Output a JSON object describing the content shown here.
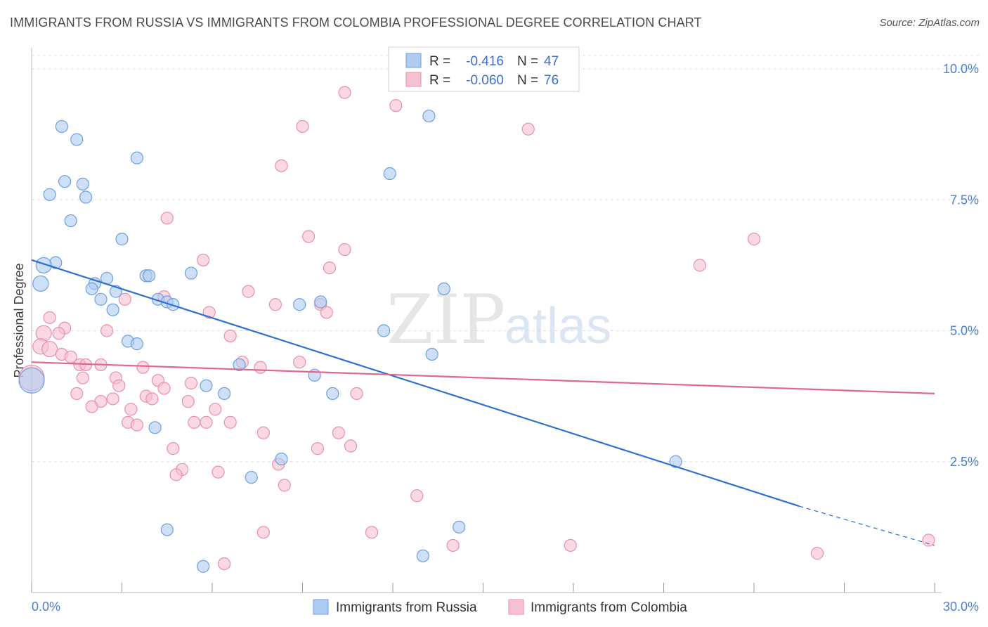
{
  "title": "IMMIGRANTS FROM RUSSIA VS IMMIGRANTS FROM COLOMBIA PROFESSIONAL DEGREE CORRELATION CHART",
  "source": "Source: ZipAtlas.com",
  "watermark": {
    "zip": "ZIP",
    "atlas": "atlas"
  },
  "colors": {
    "russia_fill": "#aecbf2",
    "russia_stroke": "#6f9fdc",
    "russia_line": "#2f6fcf",
    "colombia_fill": "#f7c0d1",
    "colombia_stroke": "#e88fac",
    "colombia_line": "#e0678f",
    "tick_text": "#4a7fd0",
    "grid": "#dddddd"
  },
  "stats": {
    "russia": {
      "r_label": "R =",
      "r_value": "-0.416",
      "n_label": "N =",
      "n_value": "47"
    },
    "colombia": {
      "r_label": "R =",
      "r_value": "-0.060",
      "n_label": "N =",
      "n_value": "76"
    }
  },
  "chart_data": {
    "type": "scatter",
    "title": "IMMIGRANTS FROM RUSSIA VS IMMIGRANTS FROM COLOMBIA PROFESSIONAL DEGREE CORRELATION CHART",
    "xlabel": "",
    "ylabel": "Professional Degree",
    "xlim": [
      0,
      30
    ],
    "ylim": [
      0,
      10.5
    ],
    "x_tick_labels": [
      "0.0%",
      "30.0%"
    ],
    "y_ticks": [
      {
        "value": 2.5,
        "label": "2.5%"
      },
      {
        "value": 5.0,
        "label": "5.0%"
      },
      {
        "value": 7.5,
        "label": "7.5%"
      },
      {
        "value": 10.0,
        "label": "10.0%"
      }
    ],
    "legend": [
      "Immigrants from Russia",
      "Immigrants from Colombia"
    ],
    "series": [
      {
        "name": "Immigrants from Russia",
        "trend": {
          "x0": 0,
          "y0": 6.35,
          "x1": 25.5,
          "y1": 1.65,
          "dash_to_x": 30,
          "dash_to_y": 0.9
        },
        "points": [
          [
            1.0,
            8.9
          ],
          [
            1.5,
            8.65
          ],
          [
            3.5,
            8.3
          ],
          [
            1.1,
            7.85
          ],
          [
            1.7,
            7.8
          ],
          [
            0.6,
            7.6
          ],
          [
            1.8,
            7.55
          ],
          [
            1.3,
            7.1
          ],
          [
            3.0,
            6.75
          ],
          [
            0.8,
            6.3
          ],
          [
            0.4,
            6.25
          ],
          [
            5.3,
            6.1
          ],
          [
            2.5,
            6.0
          ],
          [
            3.8,
            6.05
          ],
          [
            3.9,
            6.05
          ],
          [
            0.3,
            5.9
          ],
          [
            2.1,
            5.9
          ],
          [
            2.0,
            5.8
          ],
          [
            2.8,
            5.75
          ],
          [
            4.2,
            5.6
          ],
          [
            2.3,
            5.6
          ],
          [
            4.5,
            5.55
          ],
          [
            4.7,
            5.5
          ],
          [
            2.7,
            5.4
          ],
          [
            8.9,
            5.5
          ],
          [
            9.6,
            5.55
          ],
          [
            3.2,
            4.8
          ],
          [
            3.5,
            4.75
          ],
          [
            11.7,
            5.0
          ],
          [
            13.3,
            4.55
          ],
          [
            6.9,
            4.35
          ],
          [
            9.4,
            4.15
          ],
          [
            5.8,
            3.95
          ],
          [
            6.4,
            3.8
          ],
          [
            10.0,
            3.8
          ],
          [
            4.1,
            3.15
          ],
          [
            8.3,
            2.55
          ],
          [
            0.0,
            4.05
          ],
          [
            7.3,
            2.2
          ],
          [
            4.5,
            1.2
          ],
          [
            5.7,
            0.5
          ],
          [
            13.0,
            0.7
          ],
          [
            14.2,
            1.25
          ],
          [
            21.4,
            2.5
          ],
          [
            13.2,
            9.1
          ],
          [
            11.9,
            8.0
          ],
          [
            13.7,
            5.8
          ]
        ]
      },
      {
        "name": "Immigrants from Colombia",
        "trend": {
          "x0": 0,
          "y0": 4.4,
          "x1": 30,
          "y1": 3.8
        },
        "points": [
          [
            10.4,
            9.55
          ],
          [
            12.1,
            9.3
          ],
          [
            9.0,
            8.9
          ],
          [
            16.5,
            8.85
          ],
          [
            8.3,
            8.15
          ],
          [
            4.5,
            7.15
          ],
          [
            9.2,
            6.8
          ],
          [
            24.0,
            6.75
          ],
          [
            10.4,
            6.55
          ],
          [
            5.7,
            6.35
          ],
          [
            22.2,
            6.25
          ],
          [
            9.9,
            6.2
          ],
          [
            7.2,
            5.75
          ],
          [
            4.4,
            5.65
          ],
          [
            3.1,
            5.6
          ],
          [
            8.1,
            5.5
          ],
          [
            9.6,
            5.5
          ],
          [
            9.8,
            5.35
          ],
          [
            5.9,
            5.35
          ],
          [
            0.6,
            5.25
          ],
          [
            1.1,
            5.05
          ],
          [
            0.4,
            4.95
          ],
          [
            2.5,
            5.0
          ],
          [
            0.9,
            4.95
          ],
          [
            6.6,
            4.9
          ],
          [
            0.3,
            4.7
          ],
          [
            0.6,
            4.65
          ],
          [
            1.0,
            4.55
          ],
          [
            1.3,
            4.5
          ],
          [
            7.0,
            4.4
          ],
          [
            8.9,
            4.4
          ],
          [
            2.3,
            4.35
          ],
          [
            1.6,
            4.35
          ],
          [
            3.7,
            4.3
          ],
          [
            1.8,
            4.35
          ],
          [
            7.6,
            4.3
          ],
          [
            1.7,
            4.1
          ],
          [
            2.8,
            4.1
          ],
          [
            4.2,
            4.05
          ],
          [
            2.9,
            3.95
          ],
          [
            5.3,
            4.0
          ],
          [
            4.4,
            3.9
          ],
          [
            10.8,
            3.8
          ],
          [
            1.5,
            3.8
          ],
          [
            3.8,
            3.75
          ],
          [
            4.0,
            3.7
          ],
          [
            2.7,
            3.7
          ],
          [
            2.3,
            3.65
          ],
          [
            5.2,
            3.65
          ],
          [
            2.0,
            3.55
          ],
          [
            3.3,
            3.5
          ],
          [
            6.1,
            3.5
          ],
          [
            3.2,
            3.25
          ],
          [
            3.5,
            3.2
          ],
          [
            5.4,
            3.25
          ],
          [
            5.8,
            3.25
          ],
          [
            6.6,
            3.25
          ],
          [
            7.7,
            3.05
          ],
          [
            10.2,
            3.05
          ],
          [
            10.6,
            2.8
          ],
          [
            9.5,
            2.75
          ],
          [
            4.7,
            2.75
          ],
          [
            8.2,
            2.45
          ],
          [
            5.0,
            2.35
          ],
          [
            6.2,
            2.3
          ],
          [
            4.8,
            2.25
          ],
          [
            8.4,
            2.05
          ],
          [
            12.8,
            1.85
          ],
          [
            7.7,
            1.15
          ],
          [
            11.3,
            1.15
          ],
          [
            14.0,
            0.9
          ],
          [
            17.9,
            0.9
          ],
          [
            6.4,
            0.55
          ],
          [
            26.1,
            0.75
          ],
          [
            29.8,
            1.0
          ],
          [
            0.0,
            4.1
          ]
        ]
      }
    ]
  }
}
